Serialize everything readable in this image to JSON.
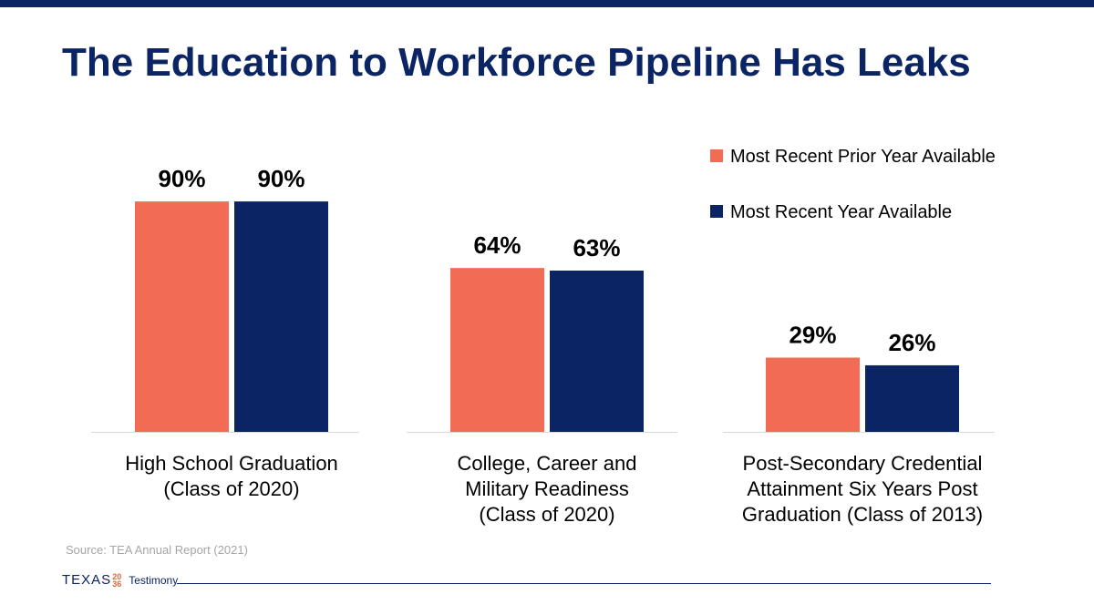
{
  "title": "The Education to Workforce Pipeline Has Leaks",
  "source": "Source: TEA Annual Report (2021)",
  "footer": {
    "logo_word": "TEXAS",
    "logo_mark_top": "20",
    "logo_mark_bottom": "36",
    "label": "Testimony"
  },
  "colors": {
    "prior": "#f26b55",
    "recent": "#0b2463"
  },
  "chart_data": {
    "type": "bar",
    "categories": [
      [
        "High School Graduation",
        "(Class of 2020)"
      ],
      [
        "College, Career and",
        "Military Readiness",
        "(Class of 2020)"
      ],
      [
        "Post-Secondary Credential",
        "Attainment Six Years Post",
        "Graduation (Class of 2013)"
      ]
    ],
    "series": [
      {
        "name": "Most Recent Prior Year Available",
        "values": [
          90,
          64,
          29
        ],
        "labels": [
          "90%",
          "64%",
          "29%"
        ]
      },
      {
        "name": "Most Recent Year Available",
        "values": [
          90,
          63,
          26
        ],
        "labels": [
          "90%",
          "63%",
          "26%"
        ]
      }
    ],
    "ylim": [
      0,
      100
    ],
    "grid": false,
    "legend": "top-right"
  }
}
